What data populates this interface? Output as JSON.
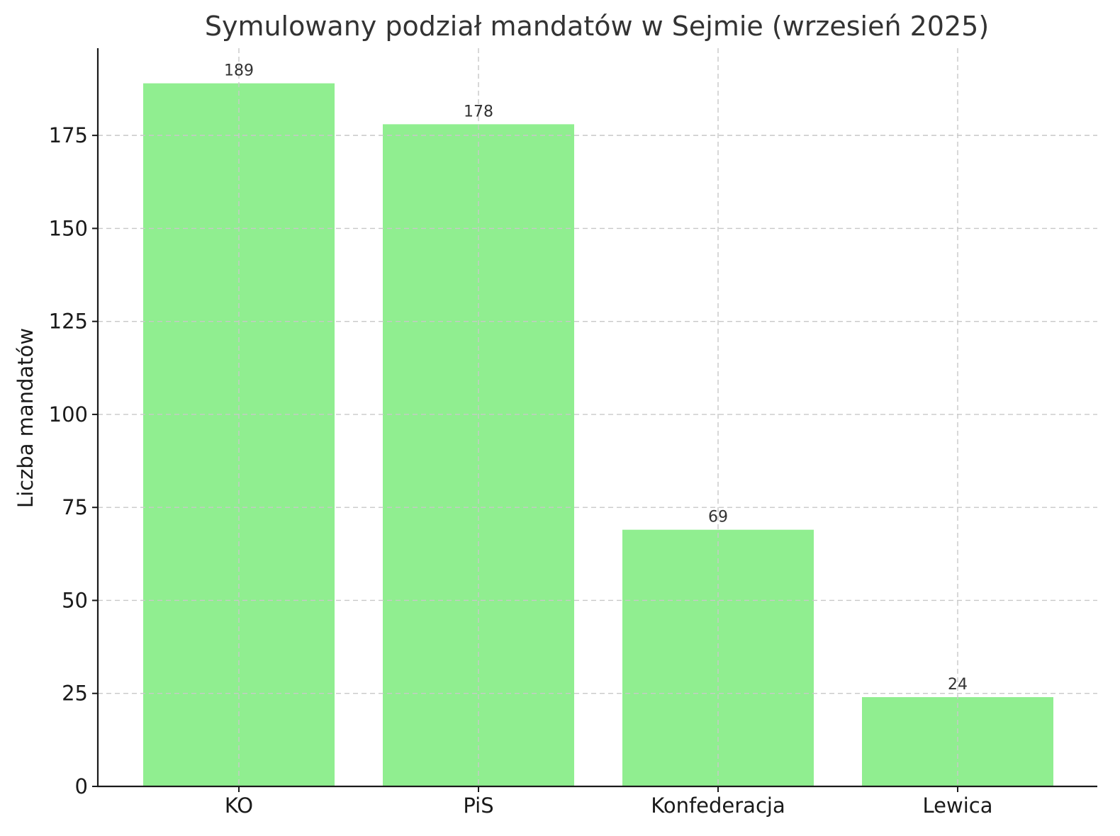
{
  "chart_data": {
    "type": "bar",
    "title": "Symulowany podział mandatów w Sejmie (wrzesień 2025)",
    "xlabel": "",
    "ylabel": "Liczba mandatów",
    "categories": [
      "KO",
      "PiS",
      "Konfederacja",
      "Lewica"
    ],
    "values": [
      189,
      178,
      69,
      24
    ],
    "data_labels": [
      "189",
      "178",
      "69",
      "24"
    ],
    "yticks": [
      0,
      25,
      50,
      75,
      100,
      125,
      150,
      175
    ],
    "ylim": [
      0,
      198.45
    ],
    "grid": true,
    "bar_color": "#90ee90"
  }
}
